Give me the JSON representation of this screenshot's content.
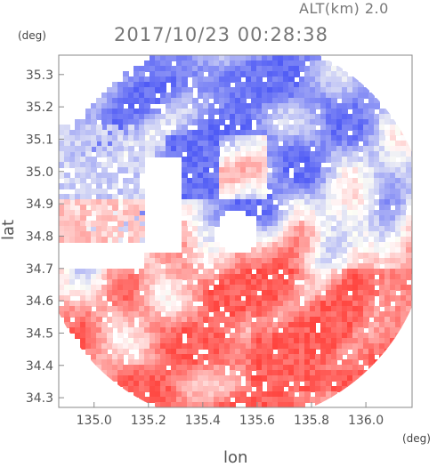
{
  "header": {
    "altitude_label": "ALT(km) 2.0",
    "timestamp": "2017/10/23 00:28:38"
  },
  "axes": {
    "y_unit": "(deg)",
    "x_unit": "(deg)",
    "y_title": "lat",
    "x_title": "lon",
    "x_ticks": [
      "135.0",
      "135.2",
      "135.4",
      "135.6",
      "135.8",
      "136.0"
    ],
    "y_ticks": [
      "35.3",
      "35.2",
      "35.1",
      "35.0",
      "34.9",
      "34.8",
      "34.7",
      "34.6",
      "34.5",
      "34.4",
      "34.3"
    ],
    "x_range": [
      134.87,
      136.17
    ],
    "y_range": [
      34.27,
      35.36
    ]
  },
  "colors": {
    "positive": "#f06060",
    "negative": "#6070e8",
    "frame": "#888888"
  }
}
